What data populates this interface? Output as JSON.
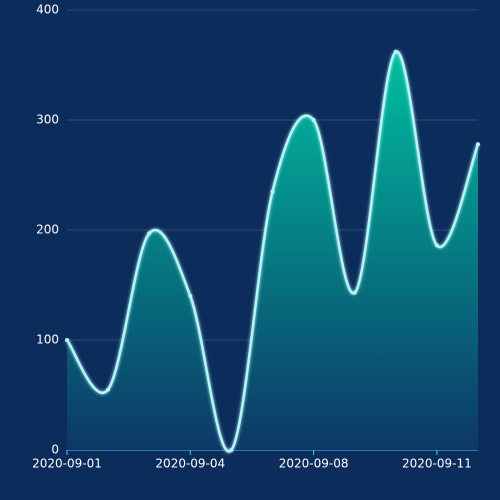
{
  "chart_data": {
    "type": "line",
    "categories": [
      "2020-09-01",
      null,
      null,
      "2020-09-04",
      null,
      null,
      "2020-09-08",
      null,
      null,
      "2020-09-11",
      null
    ],
    "values": [
      100,
      55,
      197,
      140,
      0,
      235,
      300,
      143,
      362,
      186,
      278
    ],
    "color": "#b4f6f8",
    "area_colors": [
      "#00bfa0",
      "#0c3766"
    ],
    "background": "#0c2d5c",
    "ylim": [
      0,
      400
    ],
    "yticks": [
      0,
      100,
      200,
      300,
      400
    ],
    "smooth": true,
    "area": true,
    "grid": true
  }
}
